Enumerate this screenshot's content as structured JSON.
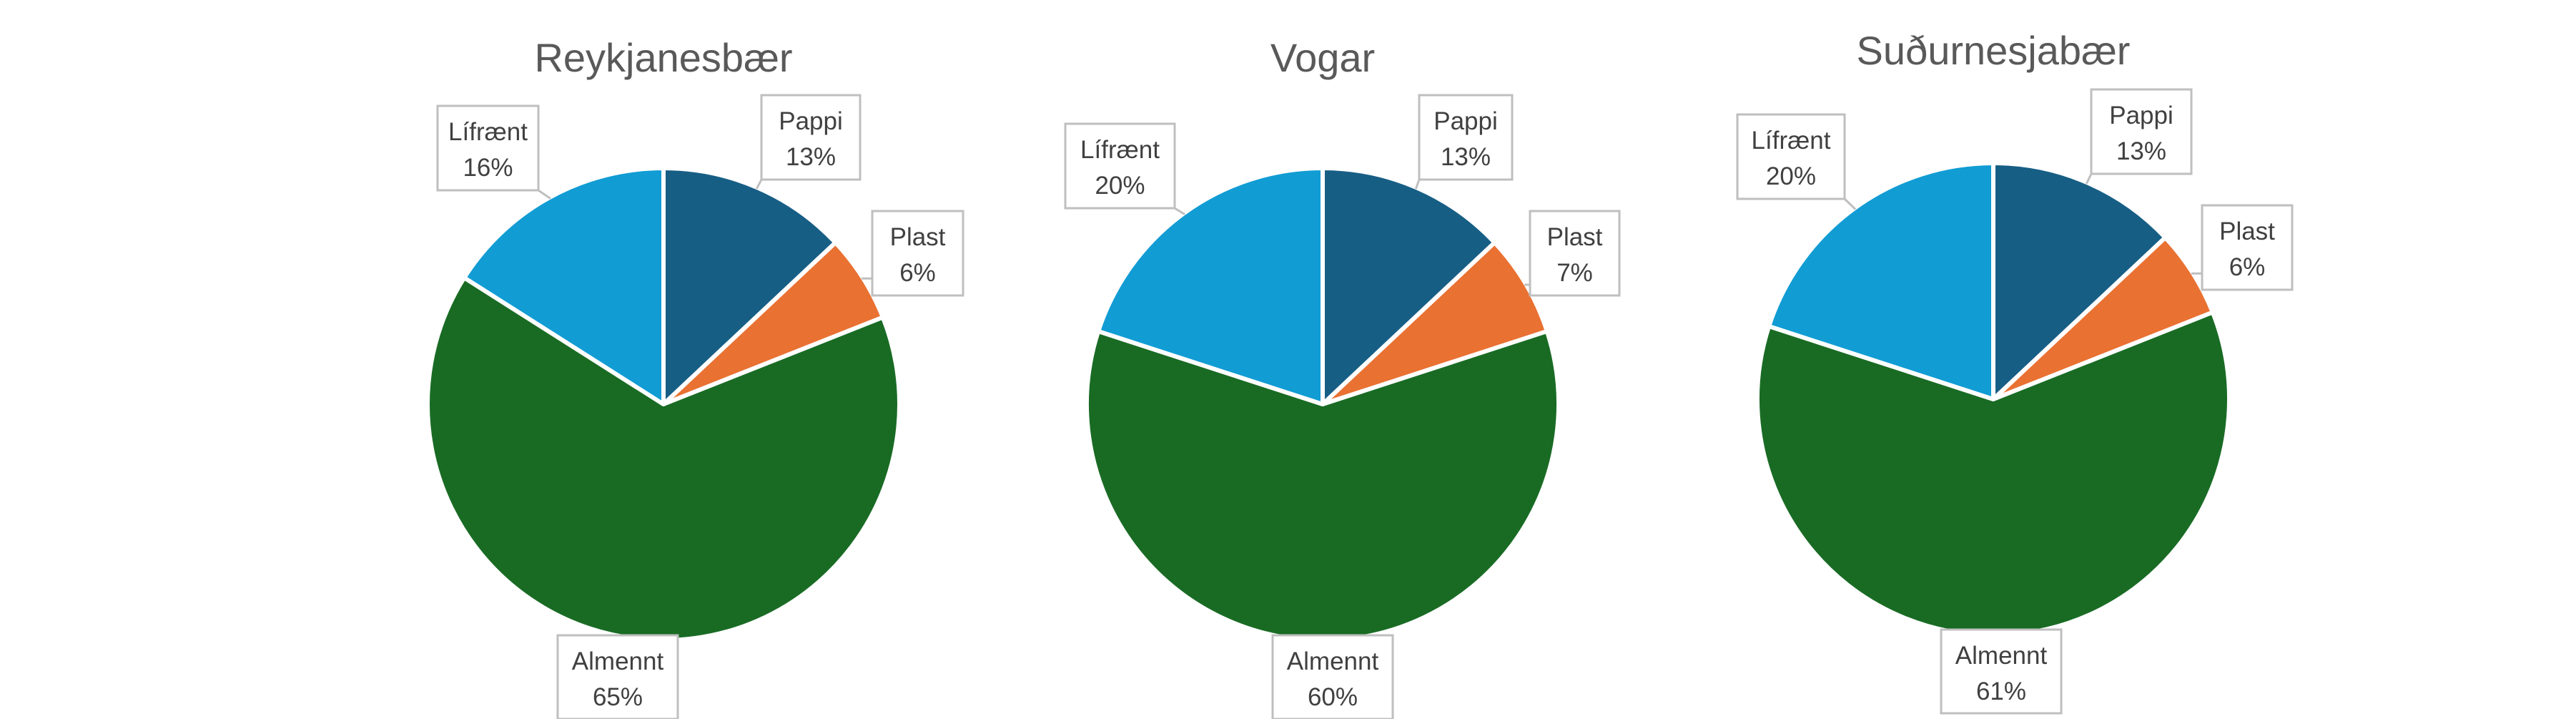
{
  "chart_data": [
    {
      "type": "pie",
      "title": "Reykjanesbær",
      "categories": [
        "Pappi",
        "Plast",
        "Almennt",
        "Lífrænt"
      ],
      "values": [
        13,
        6,
        65,
        16
      ],
      "data_labels": [
        {
          "name": "Pappi",
          "value": "13%"
        },
        {
          "name": "Plast",
          "value": "6%"
        },
        {
          "name": "Almennt",
          "value": "65%"
        },
        {
          "name": "Lífrænt",
          "value": "16%"
        }
      ]
    },
    {
      "type": "pie",
      "title": "Vogar",
      "categories": [
        "Pappi",
        "Plast",
        "Almennt",
        "Lífrænt"
      ],
      "values": [
        13,
        7,
        60,
        20
      ],
      "data_labels": [
        {
          "name": "Pappi",
          "value": "13%"
        },
        {
          "name": "Plast",
          "value": "7%"
        },
        {
          "name": "Almennt",
          "value": "60%"
        },
        {
          "name": "Lífrænt",
          "value": "20%"
        }
      ]
    },
    {
      "type": "pie",
      "title": "Suðurnesjabær",
      "categories": [
        "Pappi",
        "Plast",
        "Almennt",
        "Lífrænt"
      ],
      "values": [
        13,
        6,
        61,
        20
      ],
      "data_labels": [
        {
          "name": "Pappi",
          "value": "13%"
        },
        {
          "name": "Plast",
          "value": "6%"
        },
        {
          "name": "Almennt",
          "value": "61%"
        },
        {
          "name": "Lífrænt",
          "value": "20%"
        }
      ]
    }
  ],
  "colors": {
    "Pappi": "#175e85",
    "Plast": "#e97132",
    "Almennt": "#196b24",
    "Lífrænt": "#119cd4"
  }
}
